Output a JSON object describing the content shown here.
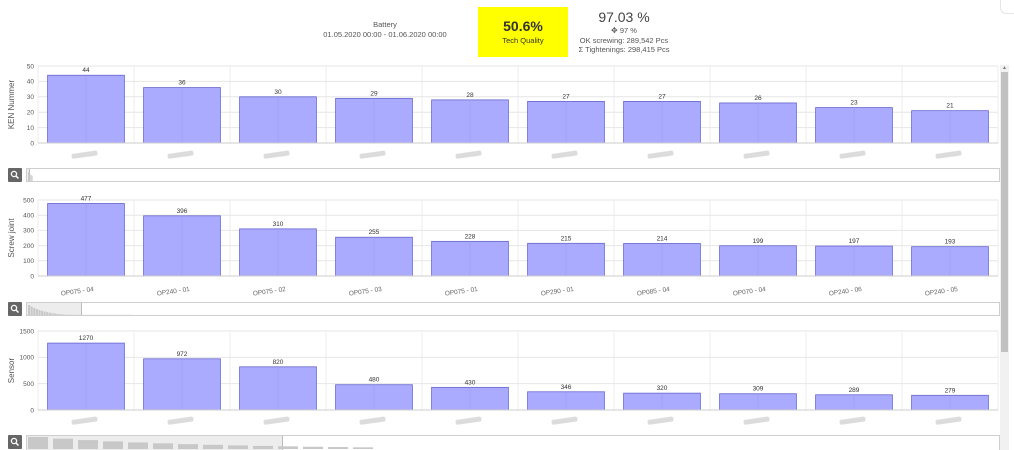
{
  "header": {
    "title": "Battery",
    "date_range": "01.05.2020 00:00 - 01.06.2020 00:00",
    "kpi_value": "50.6%",
    "kpi_label": "Tech Quality",
    "ok_rate": "97.03 %",
    "target_icon": "crosshair-icon",
    "target_rate": "97 %",
    "ok_screwing": "OK screwing: 289,542 Pcs",
    "total_tightenings": "Σ Tightenings: 298,415 Pcs"
  },
  "colors": {
    "bar_fill": "#aaaaff",
    "bar_stroke": "#6666cc",
    "kpi_background": "#ffff00",
    "zoom_button": "#666666"
  },
  "icons": {
    "zoom": "magnifier-icon",
    "scroll_up": "arrow-up-icon",
    "scroll_down": "arrow-down-icon"
  },
  "chart_data": [
    {
      "type": "bar",
      "ylabel": "KEN Nummer",
      "ylim": [
        0,
        50
      ],
      "yticks": [
        0,
        10,
        20,
        30,
        40,
        50
      ],
      "categories": [
        "",
        "",
        "",
        "",
        "",
        "",
        "",
        "",
        "",
        ""
      ],
      "values": [
        44,
        36,
        30,
        29,
        28,
        27,
        27,
        26,
        23,
        21
      ],
      "data_labels": [
        "44",
        "36",
        "30",
        "29",
        "28",
        "27",
        "27",
        "26",
        "23",
        "21"
      ],
      "grid": true
    },
    {
      "type": "bar",
      "ylabel": "Screw joint",
      "ylim": [
        0,
        500
      ],
      "yticks": [
        0,
        100,
        200,
        300,
        400,
        500
      ],
      "categories": [
        "OP075 - 04",
        "OP240 - 01",
        "OP075 - 02",
        "OP075 - 03",
        "OP075 - 01",
        "OP290 - 01",
        "OP085 - 04",
        "OP070 - 04",
        "OP240 - 06",
        "OP240 - 05"
      ],
      "values": [
        477,
        396,
        310,
        255,
        228,
        215,
        214,
        199,
        197,
        193
      ],
      "data_labels": [
        "477",
        "396",
        "310",
        "255",
        "228",
        "215",
        "214",
        "199",
        "197",
        "193"
      ],
      "grid": true
    },
    {
      "type": "bar",
      "ylabel": "Sensor",
      "ylim": [
        0,
        1500
      ],
      "yticks": [
        0,
        500,
        1000,
        1500
      ],
      "categories": [
        "",
        "",
        "",
        "",
        "",
        "",
        "",
        "",
        "",
        ""
      ],
      "values": [
        1270,
        972,
        820,
        480,
        430,
        346,
        320,
        309,
        289,
        279
      ],
      "data_labels": [
        "1270",
        "972",
        "820",
        "480",
        "430",
        "346",
        "320",
        "309",
        "289",
        "279"
      ],
      "grid": true
    }
  ]
}
